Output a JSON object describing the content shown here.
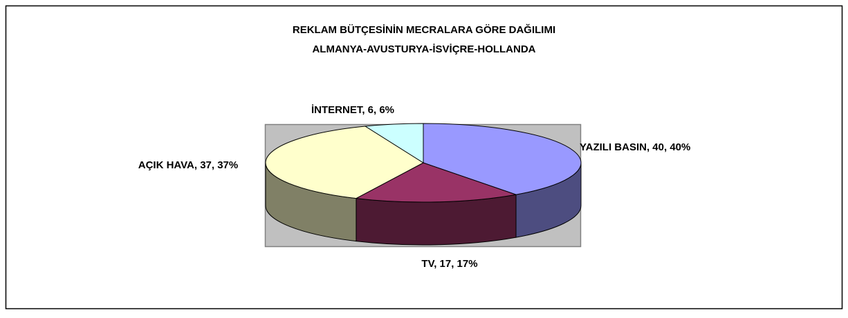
{
  "chart_data": {
    "type": "pie",
    "title": "REKLAM BÜTÇESİNİN MECRALARA GÖRE DAĞILIMI",
    "subtitle": "ALMANYA-AVUSTURYA-İSVİÇRE-HOLLANDA",
    "categories": [
      "YAZILI BASIN",
      "TV",
      "AÇIK HAVA",
      "İNTERNET"
    ],
    "values": [
      40,
      17,
      37,
      6
    ],
    "value_labels": [
      "YAZILI BASIN, 40, 40%",
      "TV, 17, 17%",
      "AÇIK HAVA, 37, 37%",
      "İNTERNET, 6, 6%"
    ],
    "colors": [
      "#9999ff",
      "#993366",
      "#ffffcc",
      "#ccffff"
    ]
  }
}
